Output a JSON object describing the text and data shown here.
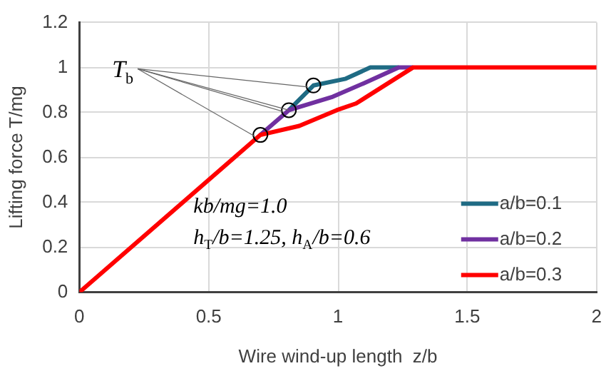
{
  "chart_data": {
    "type": "line",
    "xlabel": "Wire wind-up length  z/b",
    "ylabel": "Lifting force T/mg",
    "xlim": [
      0,
      2
    ],
    "xticks": [
      0,
      0.5,
      1,
      1.5,
      2
    ],
    "ylim": [
      0,
      1.2
    ],
    "yticks": [
      0,
      0.2,
      0.4,
      0.6,
      0.8,
      1,
      1.2
    ],
    "grid": true,
    "legend": "bottom right",
    "marker": "none",
    "line_style": "solid",
    "annotations": [
      {
        "text": "T$_{b}$",
        "x": 0.81,
        "y": 0.81
      },
      "kb/mg=1.0",
      "h$_{T}$/b=1.25, h$_{A}$/b=0.6"
    ],
    "series": [
      {
        "name": "a/b=0.1",
        "color": "#1f6b84",
        "x": [
          0.81,
          0.905,
          1.03,
          1.125,
          1.235
        ],
        "values": [
          0.81,
          0.92,
          0.95,
          1.0,
          1.0
        ]
      },
      {
        "name": "a/b=0.2",
        "color": "#7030a0",
        "x": [
          0.7,
          0.81,
          0.98,
          1.1,
          1.235,
          1.29
        ],
        "values": [
          0.7,
          0.81,
          0.87,
          0.93,
          1.0,
          1.0
        ]
      },
      {
        "name": "a/b=0.3",
        "color": "#ff0000",
        "x": [
          0,
          0.7,
          0.85,
          0.995,
          1.07,
          1.29,
          2
        ],
        "values": [
          0,
          0.7,
          0.74,
          0.81,
          0.84,
          1.0,
          1.0
        ]
      },
      {
        "type": "scatter",
        "color": "#000000",
        "marker": "circle",
        "x": [
          0.7,
          0.81,
          0.905
        ],
        "values": [
          0.7,
          0.81,
          0.92
        ]
      }
    ]
  }
}
